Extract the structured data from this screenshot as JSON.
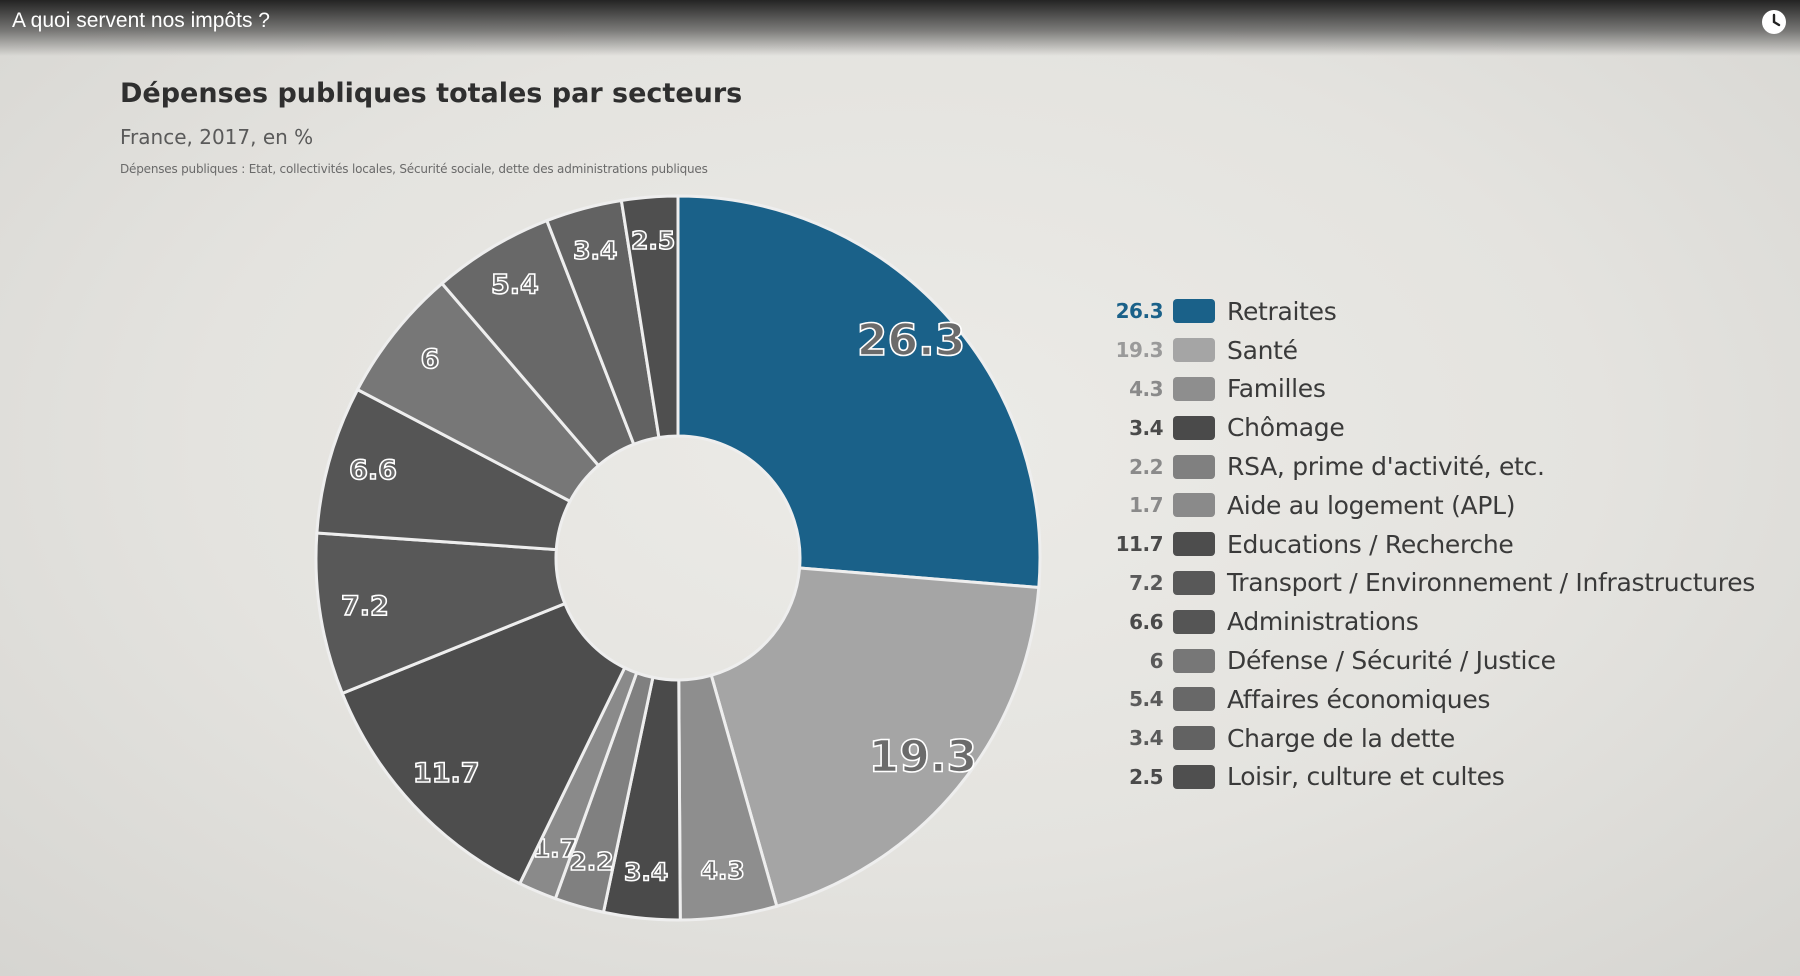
{
  "video": {
    "title": "A quoi servent nos impôts ?",
    "clock_icon": "clock-icon"
  },
  "chart_data": {
    "type": "pie",
    "title": "Dépenses publiques totales par secteurs",
    "subtitle": "France, 2017, en %",
    "note": "Dépenses publiques : Etat, collectivités locales, Sécurité sociale, dette des administrations publiques",
    "donut": true,
    "categories": [
      "Retraites",
      "Santé",
      "Familles",
      "Chômage",
      "RSA, prime d'activité, etc.",
      "Aide au logement (APL)",
      "Educations / Recherche",
      "Transport / Environnement / Infrastructures",
      "Administrations",
      "Défense / Sécurité / Justice",
      "Affaires économiques",
      "Charge de la dette",
      "Loisir, culture et cultes"
    ],
    "values": [
      26.3,
      19.3,
      4.3,
      3.4,
      2.2,
      1.7,
      11.7,
      7.2,
      6.6,
      6,
      5.4,
      3.4,
      2.5
    ],
    "value_labels": [
      "26.3",
      "19.3",
      "4.3",
      "3.4",
      "2.2",
      "1.7",
      "11.7",
      "7.2",
      "6.6",
      "6",
      "5.4",
      "3.4",
      "2.5"
    ],
    "colors": [
      "#1a6189",
      "#a5a5a5",
      "#8e8e8e",
      "#4a4a4a",
      "#808080",
      "#8a8a8a",
      "#4d4d4d",
      "#585858",
      "#555555",
      "#777777",
      "#686868",
      "#626262",
      "#4f4f4f"
    ],
    "legend_value_colors": [
      "#1a6189",
      "#9a9a9a",
      "#8a8a8a",
      "#4a4a4a",
      "#8a8a8a",
      "#8a8a8a",
      "#4a4a4a",
      "#5a5a5a",
      "#4a4a4a",
      "#5a5a5a",
      "#5a5a5a",
      "#5a5a5a",
      "#4a4a4a"
    ],
    "legend_placement": "right"
  }
}
